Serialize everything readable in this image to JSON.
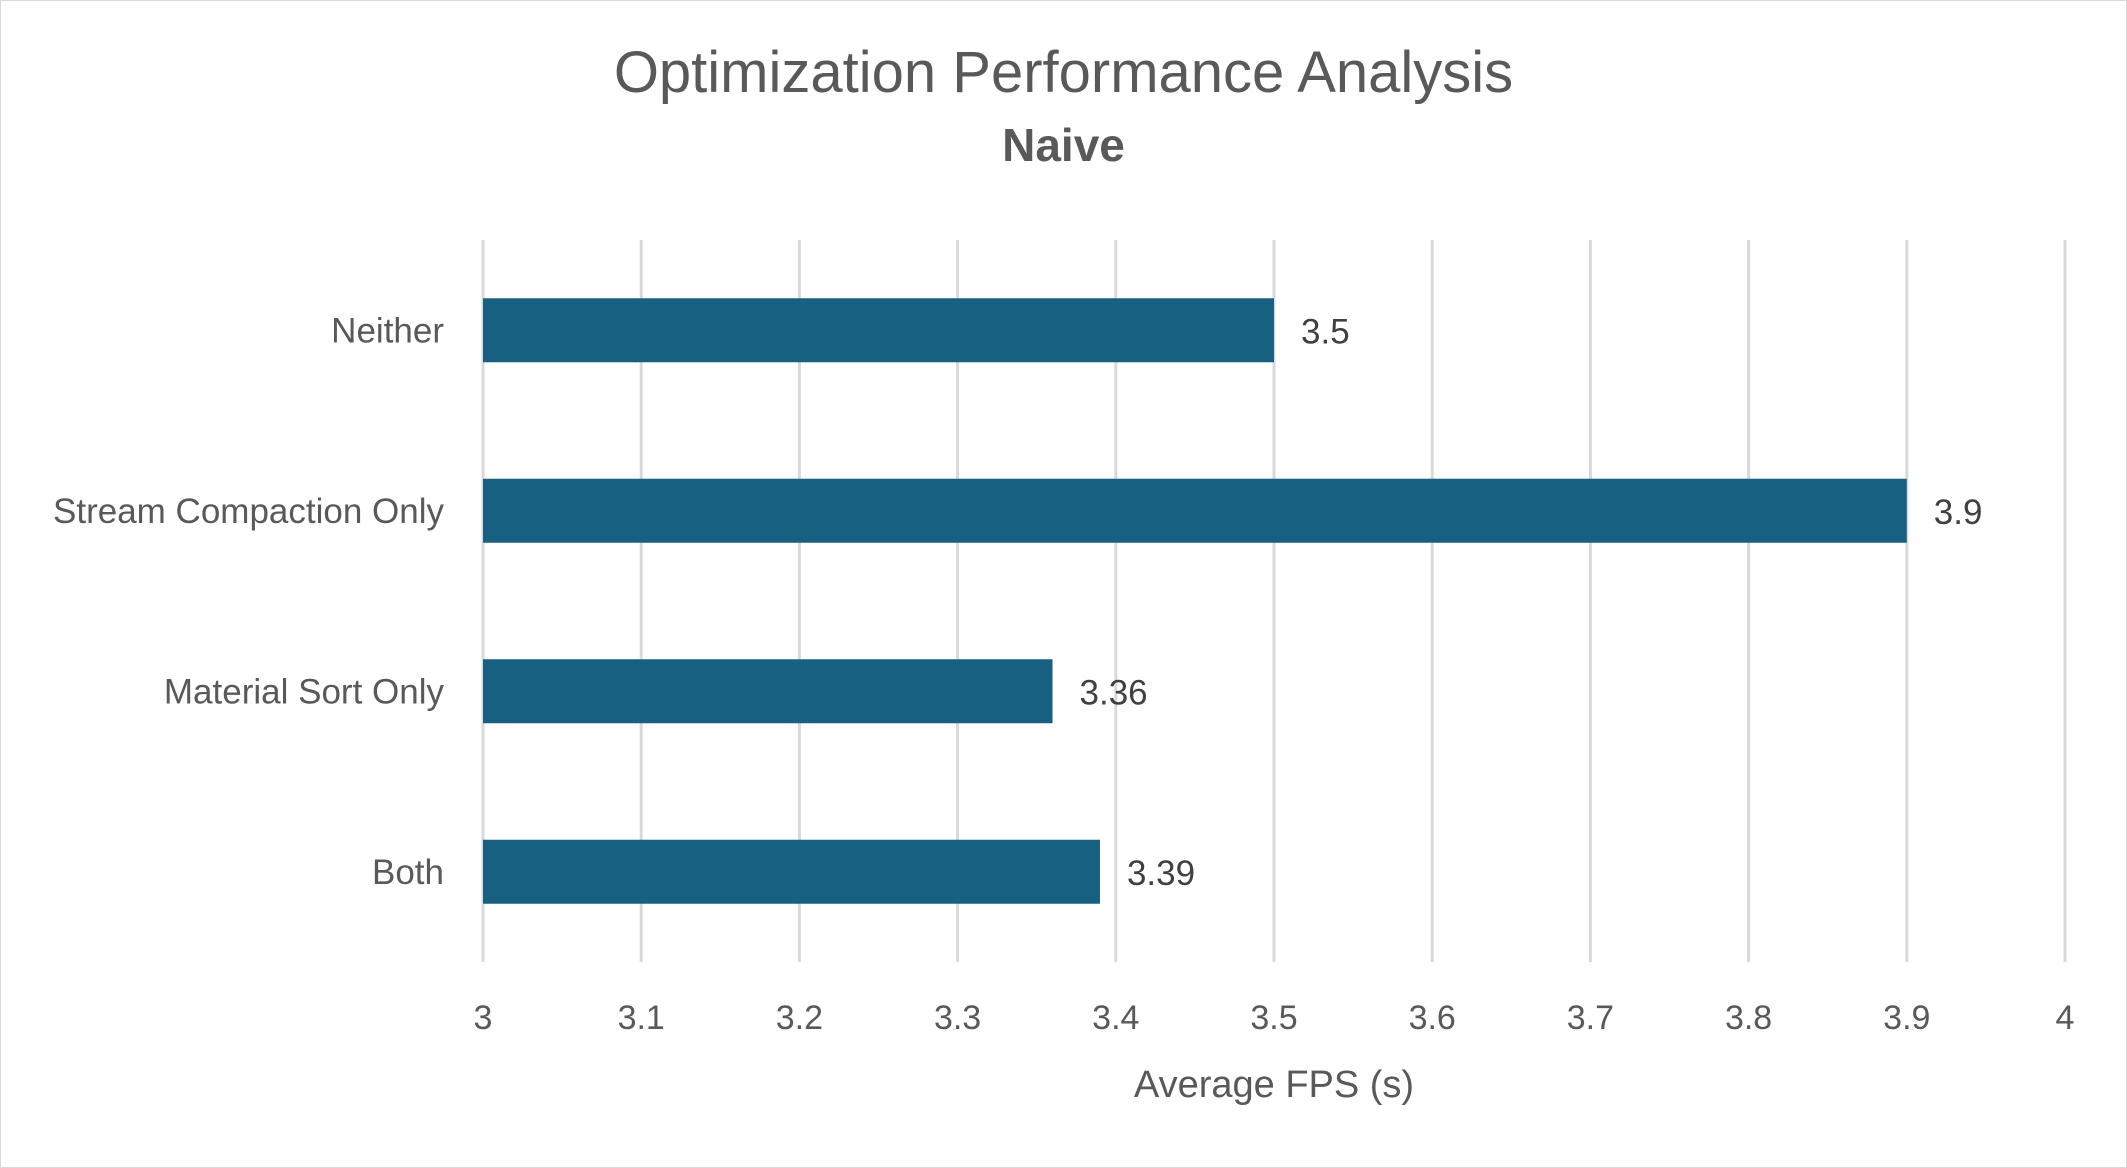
{
  "chart_data": {
    "type": "bar",
    "orientation": "horizontal",
    "title": "Optimization Performance Analysis",
    "subtitle": "Naive",
    "xlabel": "Average FPS (s)",
    "ylabel": "",
    "categories": [
      "Neither",
      "Stream Compaction Only",
      "Material Sort Only",
      "Both"
    ],
    "values": [
      3.5,
      3.9,
      3.36,
      3.39
    ],
    "data_labels": [
      "3.5",
      "3.9",
      "3.36",
      "3.39"
    ],
    "xlim": [
      3,
      4
    ],
    "x_ticks": [
      "3",
      "3.1",
      "3.2",
      "3.3",
      "3.4",
      "3.5",
      "3.6",
      "3.7",
      "3.8",
      "3.9",
      "4"
    ],
    "grid": "vertical",
    "legend": "none",
    "bar_color": "#176082",
    "grid_color": "#d9d9d9"
  }
}
